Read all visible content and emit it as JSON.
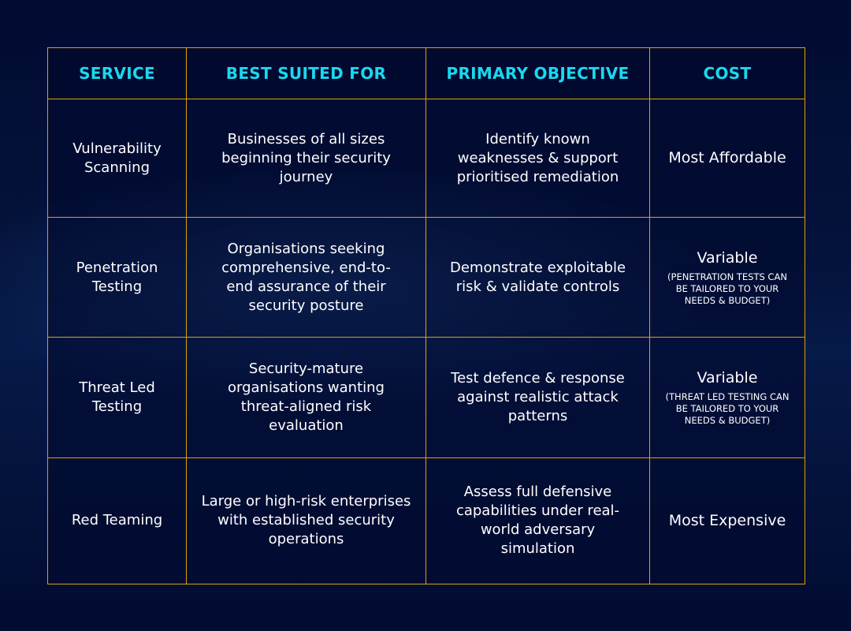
{
  "headers": [
    "SERVICE",
    "BEST SUITED FOR",
    "PRIMARY OBJECTIVE",
    "COST"
  ],
  "rows": [
    {
      "service": "Vulnerability Scanning",
      "suited": "Businesses of all sizes beginning their security journey",
      "objective": "Identify known weaknesses & support prioritised remediation",
      "cost": "Most Affordable",
      "cost_note": ""
    },
    {
      "service": "Penetration Testing",
      "suited": "Organisations seeking comprehensive, end-to-end assurance of their security posture",
      "objective": "Demonstrate exploitable risk & validate controls",
      "cost": "Variable",
      "cost_note": "(PENETRATION TESTS CAN BE TAILORED TO YOUR NEEDS & BUDGET)"
    },
    {
      "service": "Threat Led Testing",
      "suited": "Security-mature organisations wanting threat-aligned risk evaluation",
      "objective": "Test defence & response against realistic attack patterns",
      "cost": "Variable",
      "cost_note": "(THREAT LED TESTING CAN BE TAILORED TO YOUR NEEDS & BUDGET)"
    },
    {
      "service": "Red Teaming",
      "suited": "Large or high-risk enterprises with established security operations",
      "objective": "Assess full defensive capabilities under real-world adversary simulation",
      "cost": "Most Expensive",
      "cost_note": ""
    }
  ],
  "colors": {
    "header_text": "#1ad8f0",
    "border": "#d9a400",
    "background": "#020b30"
  }
}
